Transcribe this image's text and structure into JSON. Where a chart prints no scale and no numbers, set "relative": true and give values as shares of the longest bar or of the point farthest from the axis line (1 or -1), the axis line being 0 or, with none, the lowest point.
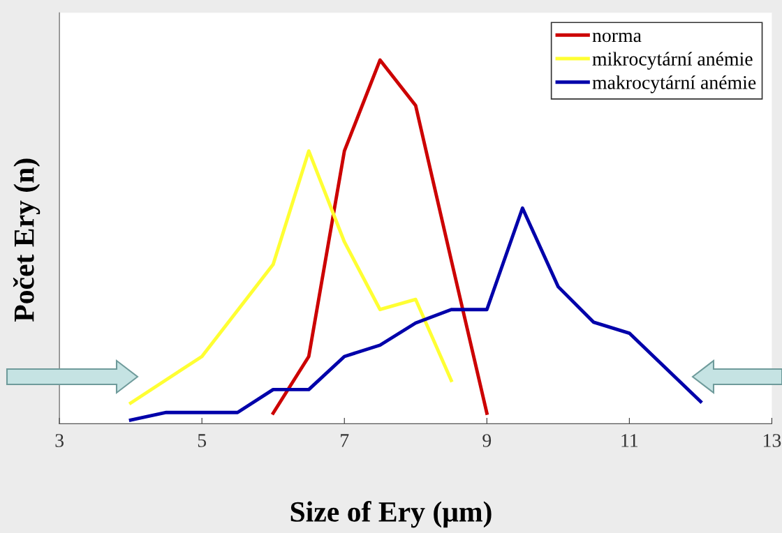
{
  "chart_data": {
    "type": "line",
    "relative": true,
    "xlabel": "Size of Ery (μm)",
    "ylabel": "Počet Ery (n)",
    "xlim": [
      3,
      13
    ],
    "xticks": [
      3,
      5,
      7,
      9,
      11,
      13
    ],
    "legend": "top right",
    "grid": false,
    "series": [
      {
        "name": "norma",
        "color": "#cc0000",
        "x": [
          6,
          6.5,
          7,
          7.5,
          8,
          8.5,
          9
        ],
        "values": [
          0.029,
          0.185,
          0.75,
          1,
          0.875,
          0.45,
          0.029
        ]
      },
      {
        "name": "mikrocytární anémie",
        "color": "#ffff33",
        "x": [
          4,
          5,
          6,
          6.5,
          7,
          7.5,
          8,
          8.5
        ],
        "values": [
          0.057,
          0.185,
          0.438,
          0.75,
          0.5,
          0.314,
          0.342,
          0.119
        ]
      },
      {
        "name": "makrocytární anémie",
        "color": "#0000aa",
        "x": [
          4,
          4.5,
          5.5,
          6,
          6.5,
          7,
          7.5,
          8,
          8.5,
          9,
          9.5,
          10,
          10.5,
          11,
          12
        ],
        "values": [
          0.01,
          0.031,
          0.031,
          0.094,
          0.094,
          0.185,
          0.216,
          0.277,
          0.314,
          0.314,
          0.593,
          0.377,
          0.279,
          0.249,
          0.061
        ]
      }
    ]
  }
}
